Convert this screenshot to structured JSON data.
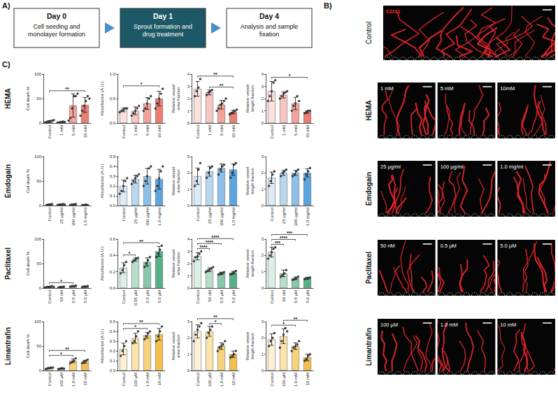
{
  "panel_labels": [
    "A)",
    "B)",
    "C)"
  ],
  "diagram": {
    "steps": [
      {
        "title": "Day 0",
        "text": "Cell seeding and monolayer formation"
      },
      {
        "title": "Day 1",
        "text": "Sprout formation and drug treatment"
      },
      {
        "title": "Day 4",
        "text": "Analysis and sample fixation"
      }
    ]
  },
  "images": {
    "stain": "CD31",
    "rows": [
      {
        "label": "Control",
        "conditions": []
      },
      {
        "label": "HEMA",
        "conditions": [
          "1 mM",
          "5 mM",
          "10mM"
        ]
      },
      {
        "label": "Emdogain",
        "conditions": [
          "25 µg/ml",
          "100 µg/ml",
          "1.0 mg/ml"
        ]
      },
      {
        "label": "Paclitaxel",
        "conditions": [
          "50 nM",
          "0.5 µM",
          "5.0 µM"
        ]
      },
      {
        "label": "Limantrafin",
        "conditions": [
          "100 µM",
          "1.0 mM",
          "10 mM"
        ]
      }
    ]
  },
  "row_labels": [
    "HEMA",
    "Emdogain",
    "Paclitaxel",
    "Limantrafin"
  ],
  "chart_data": [
    {
      "type": "bar",
      "y_label": "Cell death %",
      "categories": [
        "Control",
        "1 mM",
        "5 mM",
        "10 mM"
      ],
      "values": [
        3,
        2,
        36,
        37
      ],
      "errors": [
        2,
        1,
        24,
        15
      ],
      "points": [
        [
          1,
          2,
          3,
          4,
          5,
          6
        ],
        [
          1,
          1,
          2,
          3,
          2
        ],
        [
          5,
          10,
          30,
          55,
          55,
          60
        ],
        [
          15,
          25,
          35,
          45,
          55,
          50
        ]
      ],
      "colors": [
        "#fbe0de",
        "#f7c6c2",
        "#f2a29b",
        "#ec7d73"
      ],
      "ylim": [
        0,
        100
      ],
      "yticks": [
        0,
        50,
        100
      ],
      "significance": [
        {
          "from": "Control",
          "to": "10 mM",
          "label": "**"
        }
      ]
    },
    {
      "type": "bar",
      "y_label": "Absorbance (A.U.)",
      "categories": [
        "Control",
        "1 mM",
        "5 mM",
        "10 mM"
      ],
      "values": [
        0.27,
        0.25,
        0.4,
        0.5
      ],
      "errors": [
        0.04,
        0.08,
        0.12,
        0.15
      ],
      "points": [
        [
          0.22,
          0.25,
          0.27,
          0.3,
          0.3
        ],
        [
          0.15,
          0.2,
          0.25,
          0.3,
          0.35
        ],
        [
          0.25,
          0.3,
          0.4,
          0.5,
          0.55
        ],
        [
          0.3,
          0.4,
          0.5,
          0.6,
          0.7
        ]
      ],
      "colors": [
        "#fbe0de",
        "#f7c6c2",
        "#f2a29b",
        "#ec7d73"
      ],
      "ylim": [
        0,
        1
      ],
      "yticks": [
        {
          "value": 0,
          "label": "0.0"
        },
        0.5,
        {
          "value": 1,
          "label": "1.0"
        }
      ],
      "significance": [
        {
          "from": "Control",
          "to": "10 mM",
          "label": "*"
        }
      ]
    },
    {
      "type": "bar",
      "y_label": "Relative vessel area fraction",
      "categories": [
        "Control",
        "1 mM",
        "5 mM",
        "10 mM"
      ],
      "values": [
        2.8,
        2.5,
        1.5,
        0.9
      ],
      "errors": [
        0.6,
        0.2,
        0.35,
        0.15
      ],
      "points": [
        [
          2.2,
          2.6,
          2.9,
          3.6
        ],
        [
          2.3,
          2.5,
          2.6,
          2.7
        ],
        [
          1.0,
          1.2,
          1.5,
          1.6,
          1.8,
          2.0
        ],
        [
          0.7,
          0.8,
          0.9,
          1.0,
          1.1
        ]
      ],
      "colors": [
        "#fbe0de",
        "#f7c6c2",
        "#f2a29b",
        "#ec7d73"
      ],
      "ylim": [
        0,
        4
      ],
      "yticks": [
        0,
        1,
        2,
        3,
        4
      ],
      "significance": [
        {
          "from": "1 mM",
          "to": "10 mM",
          "label": "**"
        },
        {
          "from": "Control",
          "to": "10 mM",
          "label": "**"
        }
      ]
    },
    {
      "type": "bar",
      "y_label": "Relative vessel length fraction",
      "categories": [
        "Control",
        "1 mM",
        "5 mM",
        "10 mM"
      ],
      "values": [
        2.6,
        2.3,
        1.6,
        0.9
      ],
      "errors": [
        0.8,
        0.25,
        0.5,
        0.1
      ],
      "points": [
        [
          1.8,
          2.2,
          2.6,
          3.3,
          3.5
        ],
        [
          2.0,
          2.2,
          2.4,
          2.5,
          2.6
        ],
        [
          1.0,
          1.4,
          1.6,
          2.2,
          1.8
        ],
        [
          0.8,
          0.9,
          1.0,
          1.0
        ]
      ],
      "colors": [
        "#fbe0de",
        "#f7c6c2",
        "#f2a29b",
        "#ec7d73"
      ],
      "ylim": [
        0,
        4
      ],
      "yticks": [
        0,
        1,
        2,
        3,
        4
      ],
      "significance": [
        {
          "from": "Control",
          "to": "10 mM",
          "label": "*"
        }
      ]
    },
    {
      "type": "bar",
      "y_label": "Cell death %",
      "categories": [
        "Control",
        "25 µg/ml",
        "100 µg/ml",
        "1.0 mg/ml"
      ],
      "values": [
        2,
        2,
        2,
        1
      ],
      "errors": [
        1,
        1,
        1,
        0.5
      ],
      "points": [
        [
          1,
          2,
          2,
          3
        ],
        [
          1,
          2,
          2,
          3,
          2
        ],
        [
          1,
          2,
          2,
          3
        ],
        [
          1,
          1,
          2,
          1
        ]
      ],
      "colors": [
        "#dbeaf7",
        "#b9d8f0",
        "#8cc0e8",
        "#5aa5e0"
      ],
      "ylim": [
        0,
        100
      ],
      "yticks": [
        0,
        50,
        100
      ],
      "significance": []
    },
    {
      "type": "bar",
      "y_label": "Absorbance (A.U.)",
      "categories": [
        "Control",
        "25 µg/ml",
        "100 µg/ml",
        "1.0 mg/ml"
      ],
      "values": [
        0.2,
        0.27,
        0.3,
        0.27
      ],
      "errors": [
        0.06,
        0.04,
        0.08,
        0.1
      ],
      "points": [
        [
          0.12,
          0.15,
          0.2,
          0.25,
          0.28
        ],
        [
          0.22,
          0.25,
          0.28,
          0.3,
          0.32
        ],
        [
          0.2,
          0.25,
          0.3,
          0.38,
          0.4
        ],
        [
          0.15,
          0.2,
          0.28,
          0.35,
          0.4
        ]
      ],
      "colors": [
        "#dbeaf7",
        "#b9d8f0",
        "#8cc0e8",
        "#5aa5e0"
      ],
      "ylim": [
        0,
        0.5
      ],
      "yticks": [
        {
          "value": 0,
          "label": "0.0"
        },
        0.1,
        0.2,
        0.3,
        0.4,
        0.5
      ],
      "significance": []
    },
    {
      "type": "bar",
      "y_label": "Relative vessel area fraction",
      "categories": [
        "Control",
        "25 µg/ml",
        "100 µg/ml",
        "1.0 mg/ml"
      ],
      "values": [
        1.8,
        2.1,
        2.3,
        2.2
      ],
      "errors": [
        0.5,
        0.3,
        0.25,
        0.35
      ],
      "points": [
        [
          1.2,
          1.5,
          2.2,
          2.6
        ],
        [
          1.7,
          2.0,
          2.3,
          2.4
        ],
        [
          1.9,
          2.2,
          2.4,
          2.5
        ],
        [
          1.7,
          2.0,
          2.5,
          2.6
        ]
      ],
      "colors": [
        "#dbeaf7",
        "#b9d8f0",
        "#8cc0e8",
        "#5aa5e0"
      ],
      "ylim": [
        0,
        3
      ],
      "yticks": [
        0,
        1,
        2,
        3
      ],
      "significance": []
    },
    {
      "type": "bar",
      "y_label": "Relative vessel length fraction",
      "categories": [
        "Control",
        "25 µg/ml",
        "100 µg/ml",
        "1.0 mg/ml"
      ],
      "values": [
        1.7,
        2.0,
        2.0,
        2.0
      ],
      "errors": [
        0.35,
        0.15,
        0.15,
        0.25
      ],
      "points": [
        [
          1.2,
          1.5,
          1.9,
          2.1
        ],
        [
          1.8,
          2.0,
          2.1,
          2.2
        ],
        [
          1.8,
          1.9,
          2.1,
          2.2
        ],
        [
          1.6,
          1.9,
          2.1,
          2.3
        ]
      ],
      "colors": [
        "#dbeaf7",
        "#b9d8f0",
        "#8cc0e8",
        "#5aa5e0"
      ],
      "ylim": [
        0,
        3
      ],
      "yticks": [
        0,
        1,
        2,
        3
      ],
      "significance": []
    },
    {
      "type": "bar",
      "y_label": "Cell death %",
      "categories": [
        "Control",
        "50 nM",
        "0.5 µM",
        "5.0 µM"
      ],
      "values": [
        2,
        2,
        4,
        3
      ],
      "errors": [
        1,
        1,
        1,
        1
      ],
      "points": [
        [
          1,
          2,
          2,
          3,
          4,
          2
        ],
        [
          1,
          2,
          2,
          3
        ],
        [
          3,
          4,
          4,
          5
        ],
        [
          2,
          3,
          3,
          4
        ]
      ],
      "colors": [
        "#dcefe6",
        "#b5dfcb",
        "#86c9aa",
        "#55b088"
      ],
      "ylim": [
        0,
        100
      ],
      "yticks": [
        0,
        50,
        100
      ],
      "significance": [
        {
          "from": "Control",
          "to": "0.5 µM",
          "label": "*"
        }
      ]
    },
    {
      "type": "bar",
      "y_label": "Absorbance (A.U.)",
      "categories": [
        "Control",
        "0.05 µM",
        "0.5 µM",
        "5.0 µM"
      ],
      "values": [
        0.25,
        0.35,
        0.32,
        0.45
      ],
      "errors": [
        0.06,
        0.02,
        0.05,
        0.06
      ],
      "points": [
        [
          0.18,
          0.22,
          0.28,
          0.32
        ],
        [
          0.32,
          0.34,
          0.36,
          0.37
        ],
        [
          0.26,
          0.3,
          0.34,
          0.38
        ],
        [
          0.38,
          0.42,
          0.47,
          0.52
        ]
      ],
      "colors": [
        "#dcefe6",
        "#b5dfcb",
        "#86c9aa",
        "#55b088"
      ],
      "ylim": [
        0,
        0.6
      ],
      "yticks": [
        {
          "value": 0,
          "label": "0.0"
        },
        0.2,
        0.4,
        0.6
      ],
      "significance": [
        {
          "from": "Control",
          "to": "0.05 µM",
          "label": "*"
        },
        {
          "from": "Control",
          "to": "5.0 µM",
          "label": "**"
        }
      ]
    },
    {
      "type": "bar",
      "y_label": "Relative vessel area fraction",
      "categories": [
        "Control",
        "50 nM",
        "0.5 µM",
        "5.0 µM"
      ],
      "values": [
        2.6,
        1.5,
        1.2,
        1.25
      ],
      "errors": [
        0.3,
        0.15,
        0.1,
        0.12
      ],
      "points": [
        [
          2.2,
          2.5,
          2.6,
          2.8,
          3.0
        ],
        [
          1.3,
          1.4,
          1.5,
          1.6,
          1.7
        ],
        [
          1.1,
          1.2,
          1.2,
          1.3
        ],
        [
          1.1,
          1.2,
          1.3,
          1.4
        ]
      ],
      "colors": [
        "#dcefe6",
        "#b5dfcb",
        "#86c9aa",
        "#55b088"
      ],
      "ylim": [
        0,
        4
      ],
      "yticks": [
        0,
        1,
        2,
        3,
        4
      ],
      "significance": [
        {
          "from": "Control",
          "to": "50 nM",
          "label": "****"
        },
        {
          "from": "Control",
          "to": "0.5 µM",
          "label": "****"
        },
        {
          "from": "Control",
          "to": "5.0 µM",
          "label": "****"
        }
      ]
    },
    {
      "type": "bar",
      "y_label": "Relative vessel length fraction",
      "categories": [
        "Control",
        "50 nM",
        "0.5 µM",
        "5.0 µM"
      ],
      "values": [
        2.2,
        0.9,
        0.6,
        0.6
      ],
      "errors": [
        0.3,
        0.2,
        0.08,
        0.05
      ],
      "points": [
        [
          1.8,
          2.0,
          2.2,
          2.4,
          2.5
        ],
        [
          0.7,
          0.8,
          0.9,
          1.1
        ],
        [
          0.5,
          0.55,
          0.6,
          0.7
        ],
        [
          0.55,
          0.6,
          0.6,
          0.65
        ]
      ],
      "colors": [
        "#dcefe6",
        "#b5dfcb",
        "#86c9aa",
        "#55b088"
      ],
      "ylim": [
        0,
        3
      ],
      "yticks": [
        0,
        1,
        2,
        3
      ],
      "significance": [
        {
          "from": "Control",
          "to": "50 nM",
          "label": "***"
        },
        {
          "from": "Control",
          "to": "0.5 µM",
          "label": "****"
        },
        {
          "from": "Control",
          "to": "5.0 µM",
          "label": "***"
        }
      ]
    },
    {
      "type": "bar",
      "y_label": "Cell death %",
      "categories": [
        "Control",
        "100 µM",
        "1.0 mM",
        "10 mM"
      ],
      "values": [
        5,
        4,
        20,
        18
      ],
      "errors": [
        1.5,
        1,
        4,
        3
      ],
      "points": [
        [
          3,
          4,
          5,
          6,
          6
        ],
        [
          3,
          4,
          5,
          4
        ],
        [
          15,
          18,
          20,
          25
        ],
        [
          15,
          18,
          20,
          22
        ]
      ],
      "colors": [
        "#fdf0d5",
        "#fbe3a9",
        "#f8d27a",
        "#f4bf4d"
      ],
      "ylim": [
        0,
        100
      ],
      "yticks": [
        0,
        50,
        100
      ],
      "significance": [
        {
          "from": "Control",
          "to": "1.0 mM",
          "label": "*"
        },
        {
          "from": "Control",
          "to": "10 mM",
          "label": "**"
        }
      ]
    },
    {
      "type": "bar",
      "y_label": "Absorbance (A.U.)",
      "categories": [
        "Control",
        "100 µM",
        "1.0 mM",
        "10 mM"
      ],
      "values": [
        0.22,
        0.33,
        0.36,
        0.37
      ],
      "errors": [
        0.06,
        0.05,
        0.03,
        0.06
      ],
      "points": [
        [
          0.15,
          0.2,
          0.25,
          0.3
        ],
        [
          0.28,
          0.3,
          0.35,
          0.4
        ],
        [
          0.32,
          0.35,
          0.38,
          0.4
        ],
        [
          0.3,
          0.35,
          0.4,
          0.45
        ]
      ],
      "colors": [
        "#fdf0d5",
        "#fbe3a9",
        "#f8d27a",
        "#f4bf4d"
      ],
      "ylim": [
        0,
        0.5
      ],
      "yticks": [
        {
          "value": 0,
          "label": "0.0"
        },
        0.1,
        0.2,
        0.3,
        0.4,
        0.5
      ],
      "significance": [
        {
          "from": "Control",
          "to": "1.0 mM",
          "label": "*"
        },
        {
          "from": "Control",
          "to": "10 mM",
          "label": "**"
        }
      ]
    },
    {
      "type": "bar",
      "y_label": "Relative vessel area fraction",
      "categories": [
        "Control",
        "100 µM",
        "1.0 mM",
        "10 mM"
      ],
      "values": [
        2.4,
        2.4,
        1.5,
        1.0
      ],
      "errors": [
        0.4,
        0.3,
        0.2,
        0.2
      ],
      "points": [
        [
          1.8,
          2.2,
          2.5,
          2.7,
          2.9
        ],
        [
          2.0,
          2.3,
          2.5,
          2.7
        ],
        [
          1.2,
          1.4,
          1.5,
          1.6,
          1.8
        ],
        [
          0.8,
          0.9,
          1.0,
          1.2
        ]
      ],
      "colors": [
        "#fdf0d5",
        "#fbe3a9",
        "#f8d27a",
        "#f4bf4d"
      ],
      "ylim": [
        0,
        3
      ],
      "yticks": [
        0,
        1,
        2,
        3
      ],
      "significance": [
        {
          "from": "100 µM",
          "to": "1.0 mM",
          "label": "*"
        },
        {
          "from": "Control",
          "to": "10 mM",
          "label": "**"
        }
      ]
    },
    {
      "type": "bar",
      "y_label": "Relative vessel length fraction",
      "categories": [
        "Control",
        "100 µM",
        "1.0 mM",
        "10 mM"
      ],
      "values": [
        1.9,
        2.1,
        1.5,
        0.8
      ],
      "errors": [
        0.35,
        0.45,
        0.2,
        0.2
      ],
      "points": [
        [
          1.5,
          1.8,
          2.0,
          2.3
        ],
        [
          1.4,
          1.8,
          2.2,
          2.6,
          2.4
        ],
        [
          1.2,
          1.4,
          1.5,
          1.6,
          1.8
        ],
        [
          0.6,
          0.7,
          0.9,
          1.0
        ]
      ],
      "colors": [
        "#fdf0d5",
        "#fbe3a9",
        "#f8d27a",
        "#f4bf4d"
      ],
      "ylim": [
        0,
        3
      ],
      "yticks": [
        0,
        1,
        2,
        3
      ],
      "significance": [
        {
          "from": "Control",
          "to": "1.0 mM",
          "label": "*"
        },
        {
          "from": "100 µM",
          "to": "10 mM",
          "label": "**"
        }
      ]
    }
  ]
}
